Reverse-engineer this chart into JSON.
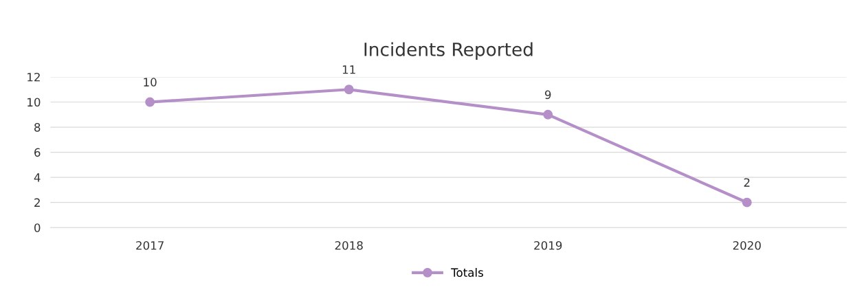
{
  "chart_data": {
    "type": "line",
    "title": "Incidents Reported",
    "categories": [
      "2017",
      "2018",
      "2019",
      "2020"
    ],
    "series": [
      {
        "name": "Totals",
        "color": "#b48fc8",
        "values": [
          10,
          11,
          9,
          2
        ]
      }
    ],
    "ylim": [
      0,
      12
    ],
    "yticks": [
      0,
      2,
      4,
      6,
      8,
      10,
      12
    ],
    "grid": "y",
    "legend": "bottom",
    "marker": "circle",
    "line_style": "solid",
    "data_labels": true
  }
}
